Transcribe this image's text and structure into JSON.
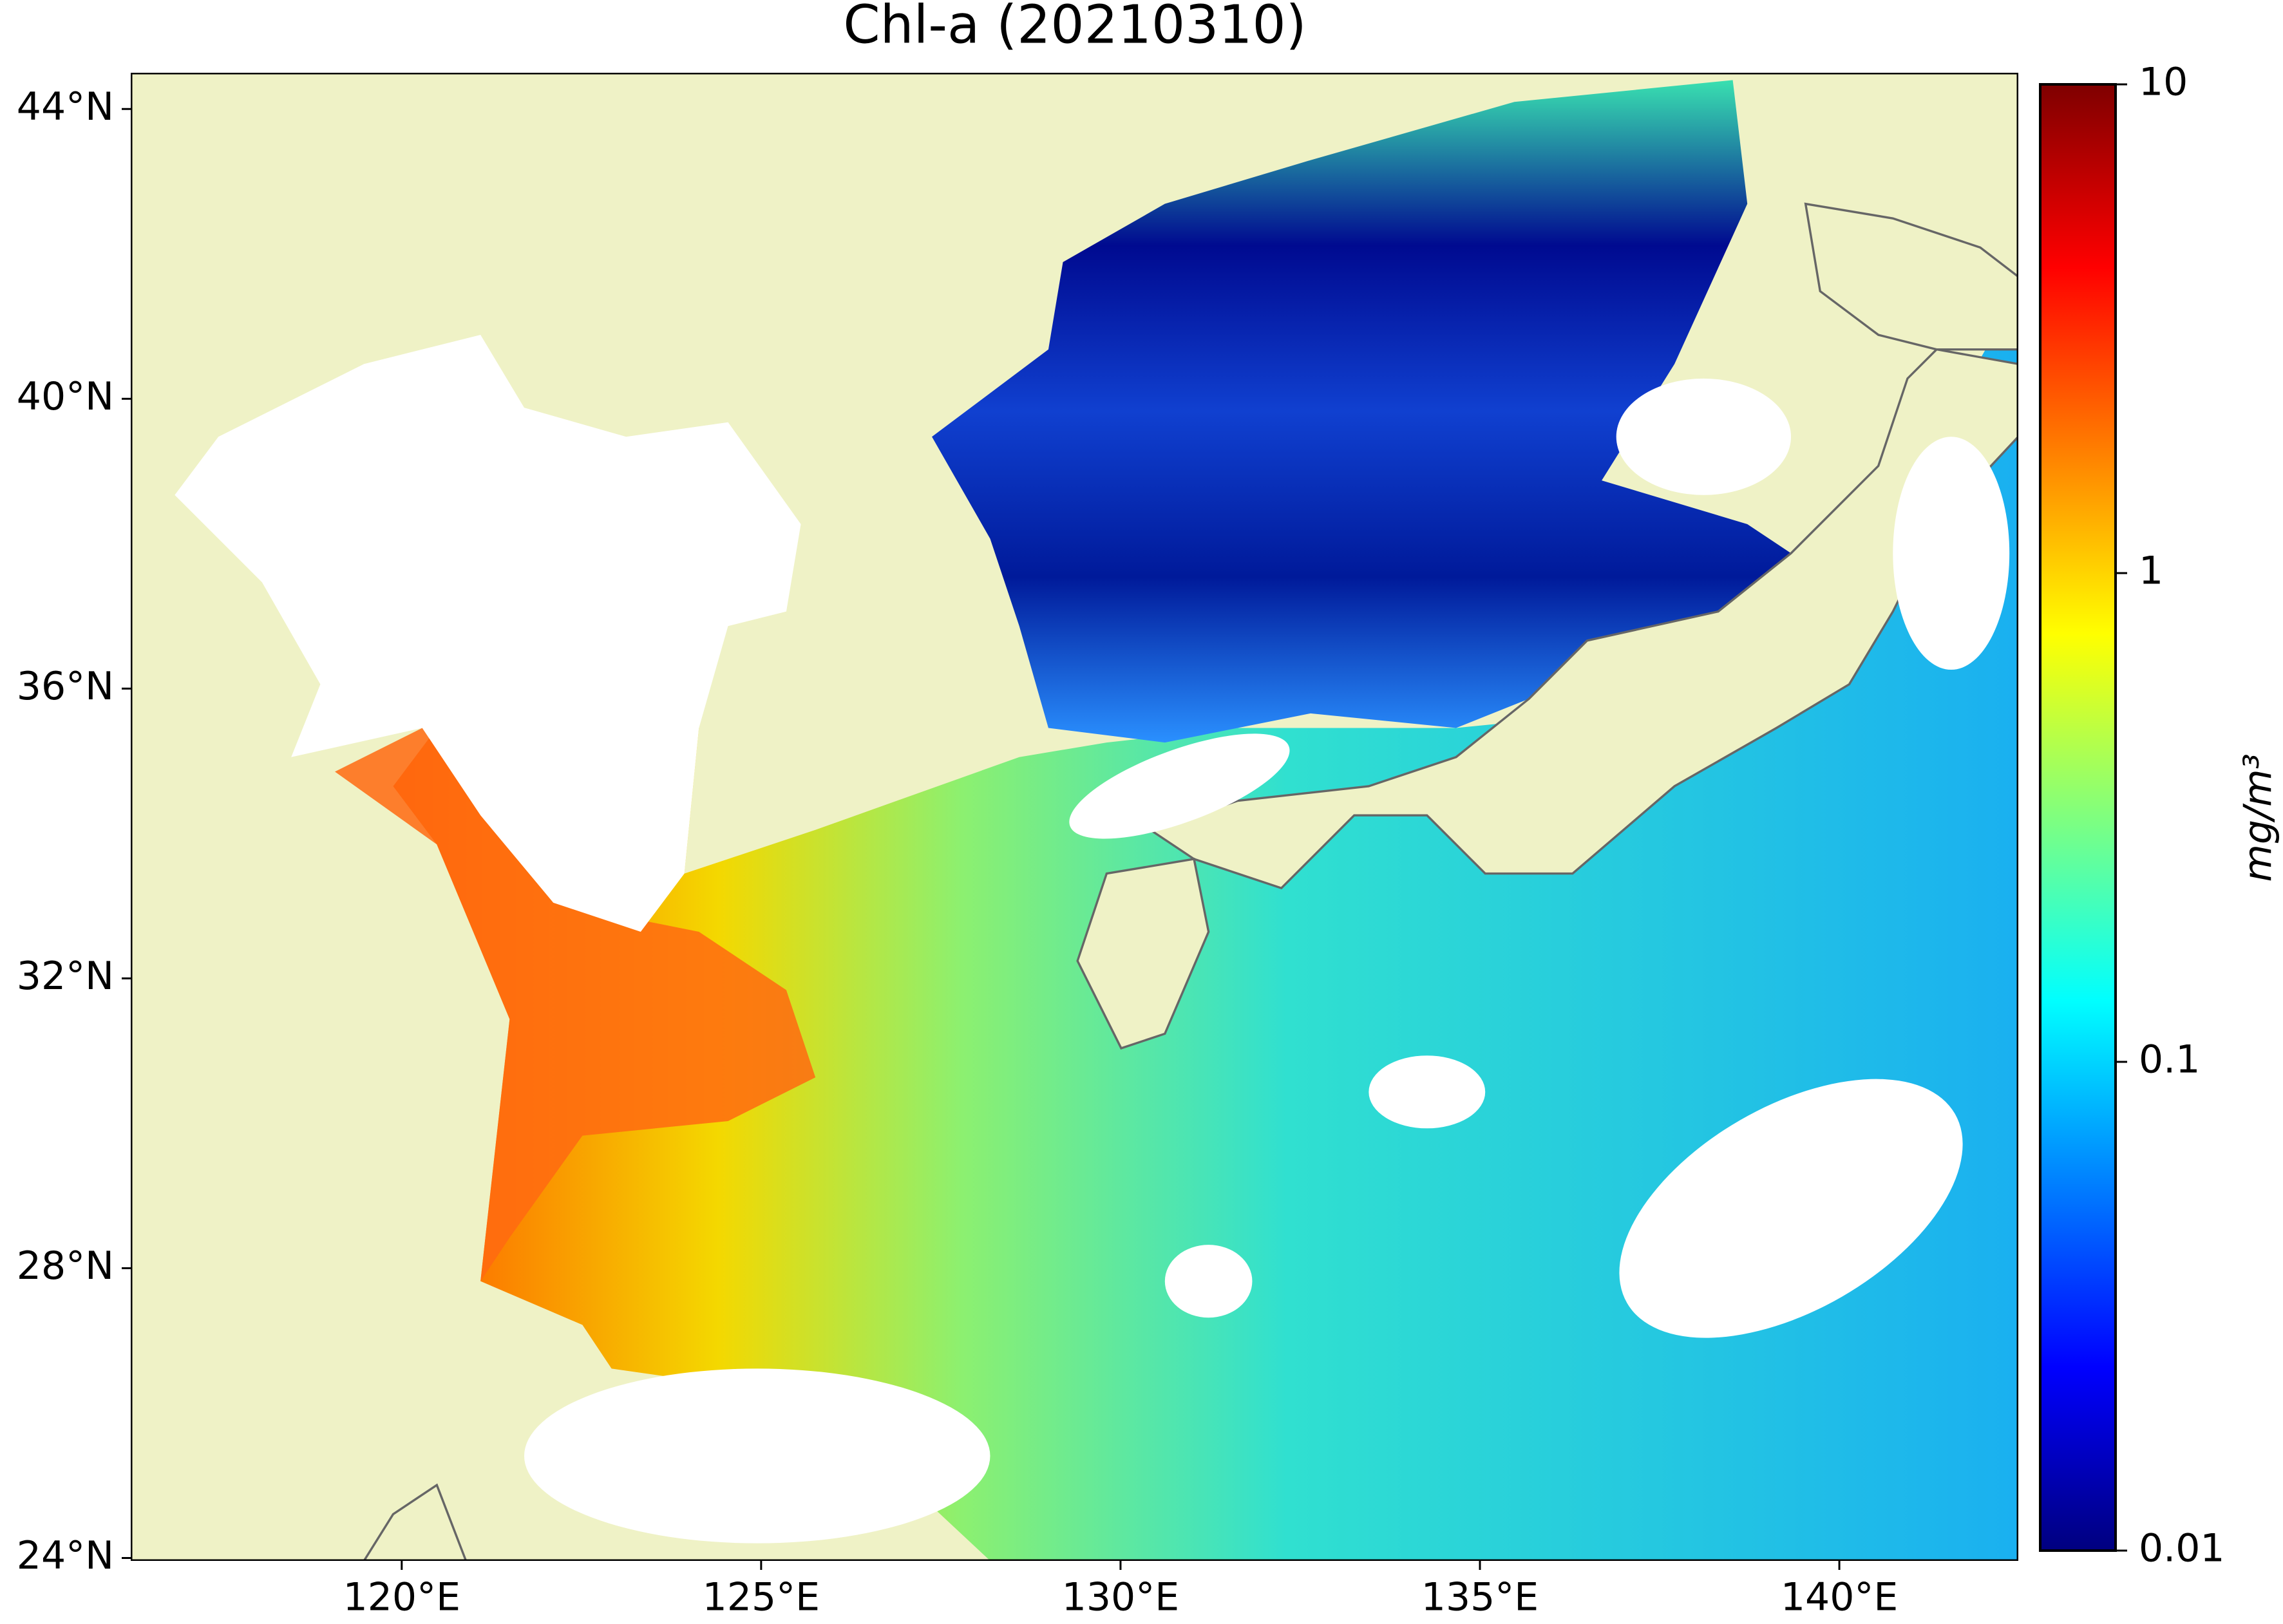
{
  "chart_data": {
    "type": "map",
    "title": "Chl-a (20210310)",
    "xlim": [
      116.23,
      142.49
    ],
    "ylim": [
      23.96,
      44.5
    ],
    "xticks": [
      {
        "value": 120,
        "label": "120°E"
      },
      {
        "value": 125,
        "label": "125°E"
      },
      {
        "value": 130,
        "label": "130°E"
      },
      {
        "value": 135,
        "label": "135°E"
      },
      {
        "value": 140,
        "label": "140°E"
      }
    ],
    "yticks": [
      {
        "value": 24,
        "label": "24°N"
      },
      {
        "value": 28,
        "label": "28°N"
      },
      {
        "value": 32,
        "label": "32°N"
      },
      {
        "value": 36,
        "label": "36°N"
      },
      {
        "value": 40,
        "label": "40°N"
      },
      {
        "value": 44,
        "label": "44°N"
      }
    ],
    "colorbar": {
      "label": "mg/m³",
      "scale": "log",
      "colormap": "jet",
      "lim": [
        0.01,
        10
      ],
      "ticks": [
        0.01,
        0.1,
        1,
        10
      ]
    }
  }
}
